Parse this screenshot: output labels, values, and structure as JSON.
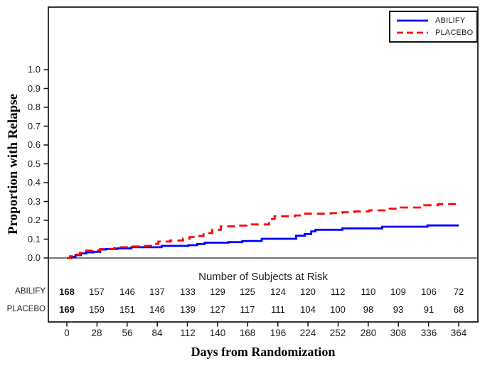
{
  "chart_data": {
    "type": "line",
    "step": true,
    "subtype": "kaplan-meier",
    "title": "",
    "xlabel": "Days from Randomization",
    "ylabel": "Proportion with Relapse",
    "xlim": [
      0,
      364
    ],
    "ylim": [
      0,
      1.0
    ],
    "grid": false,
    "legend_position": "top-right",
    "x_ticks": [
      0,
      28,
      56,
      84,
      112,
      140,
      168,
      196,
      224,
      252,
      280,
      308,
      336,
      364
    ],
    "y_ticks": [
      0,
      0.1,
      0.2,
      0.3,
      0.4,
      0.5,
      0.6,
      0.7,
      0.8,
      0.9,
      1.0
    ],
    "y_tick_labels": [
      "0.0",
      "0.1",
      "0.2",
      "0.3",
      "0.4",
      "0.5",
      "0.6",
      "0.7",
      "0.8",
      "0.9",
      "1.0"
    ],
    "series": [
      {
        "name": "ABILIFY",
        "color": "#0000ff",
        "line_style": "solid",
        "points": [
          [
            0,
            0
          ],
          [
            4,
            0.006
          ],
          [
            8,
            0.015
          ],
          [
            13,
            0.024
          ],
          [
            18,
            0.03
          ],
          [
            25,
            0.033
          ],
          [
            31,
            0.045
          ],
          [
            36,
            0.048
          ],
          [
            47,
            0.051
          ],
          [
            60,
            0.057
          ],
          [
            88,
            0.064
          ],
          [
            113,
            0.068
          ],
          [
            121,
            0.074
          ],
          [
            128,
            0.081
          ],
          [
            150,
            0.084
          ],
          [
            163,
            0.09
          ],
          [
            181,
            0.102
          ],
          [
            213,
            0.118
          ],
          [
            221,
            0.127
          ],
          [
            227,
            0.141
          ],
          [
            231,
            0.15
          ],
          [
            256,
            0.157
          ],
          [
            293,
            0.166
          ],
          [
            335,
            0.173
          ],
          [
            364,
            0.173
          ]
        ]
      },
      {
        "name": "PLACEBO",
        "color": "#ff0000",
        "line_style": "dashed",
        "points": [
          [
            0,
            0
          ],
          [
            3,
            0.009
          ],
          [
            8,
            0.018
          ],
          [
            12,
            0.027
          ],
          [
            16,
            0.039
          ],
          [
            24,
            0.042
          ],
          [
            31,
            0.048
          ],
          [
            44,
            0.052
          ],
          [
            50,
            0.057
          ],
          [
            58,
            0.061
          ],
          [
            70,
            0.064
          ],
          [
            81,
            0.075
          ],
          [
            85,
            0.087
          ],
          [
            96,
            0.093
          ],
          [
            108,
            0.103
          ],
          [
            114,
            0.111
          ],
          [
            121,
            0.117
          ],
          [
            127,
            0.132
          ],
          [
            135,
            0.15
          ],
          [
            143,
            0.168
          ],
          [
            160,
            0.172
          ],
          [
            167,
            0.178
          ],
          [
            188,
            0.207
          ],
          [
            193,
            0.221
          ],
          [
            212,
            0.226
          ],
          [
            219,
            0.235
          ],
          [
            245,
            0.238
          ],
          [
            256,
            0.243
          ],
          [
            267,
            0.247
          ],
          [
            281,
            0.253
          ],
          [
            295,
            0.262
          ],
          [
            310,
            0.268
          ],
          [
            332,
            0.28
          ],
          [
            345,
            0.286
          ],
          [
            364,
            0.289
          ]
        ]
      }
    ],
    "at_risk": {
      "title": "Number of Subjects at Risk",
      "days": [
        0,
        28,
        56,
        84,
        112,
        140,
        168,
        196,
        224,
        252,
        280,
        308,
        336,
        364
      ],
      "series": [
        {
          "name": "ABILIFY",
          "counts": [
            168,
            157,
            146,
            137,
            133,
            129,
            125,
            124,
            120,
            112,
            110,
            109,
            106,
            72
          ]
        },
        {
          "name": "PLACEBO",
          "counts": [
            169,
            159,
            151,
            146,
            139,
            127,
            117,
            111,
            104,
            100,
            98,
            93,
            91,
            68
          ]
        }
      ]
    },
    "axis_color": "#111111",
    "zero_line_color": "#4a4a4a"
  }
}
